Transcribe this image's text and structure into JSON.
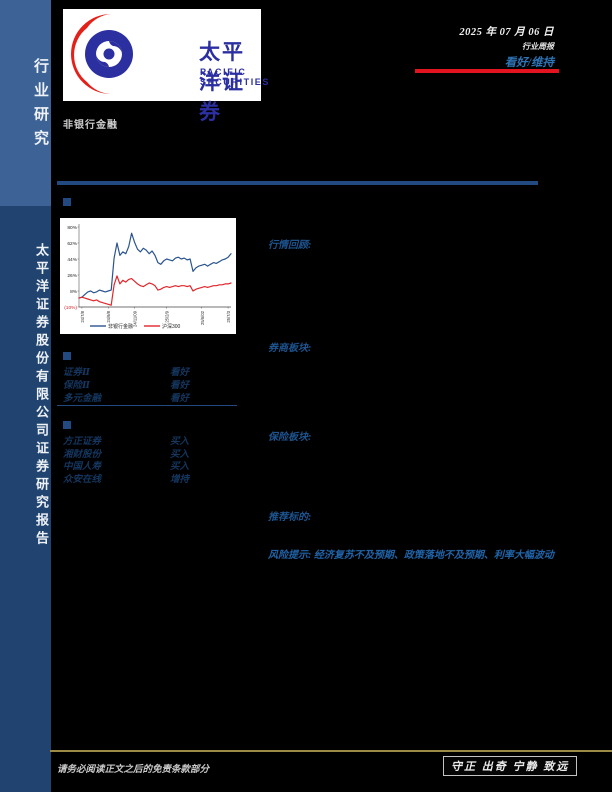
{
  "header": {
    "date": "2025 年 07 月 06 日",
    "report_type": "行业周报",
    "rating": "看好/维持",
    "industry": "非银行金融"
  },
  "sidebar": {
    "top_label": "行业研究",
    "bottom_label": "太平洋证券股份有限公司证券研究报告"
  },
  "logo": {
    "name_cn": "太平洋证券",
    "name_en": "PACIFIC SECURITIES",
    "brand_blue": "#2b2fa0",
    "brand_red": "#e32119"
  },
  "sections": {
    "review_label": "行情回顾:",
    "broker_label": "券商板块:",
    "insurance_label": "保险板块:",
    "targets_label": "推荐标的:",
    "risk_label": "风险提示:",
    "risk_text": " 经济复苏不及预期、政策落地不及预期、利率大幅波动"
  },
  "ratings": {
    "industry_rows": [
      {
        "name": "证券Ⅱ",
        "rating": "看好"
      },
      {
        "name": "保险Ⅱ",
        "rating": "看好"
      },
      {
        "name": "多元金融",
        "rating": "看好"
      }
    ],
    "company_rows": [
      {
        "name": "方正证券",
        "rating": "买入"
      },
      {
        "name": "湘财股份",
        "rating": "买入"
      },
      {
        "name": "中国人寿",
        "rating": "买入"
      },
      {
        "name": "众安在线",
        "rating": "增持"
      }
    ]
  },
  "footer": {
    "disclaimer": "请务必阅读正文之后的免责条款部分",
    "motto": "守正 出奇 宁静 致远",
    "line_color": "#9c8b45"
  },
  "chart_data": {
    "type": "line",
    "title": "",
    "xlabel": "",
    "ylabel": "",
    "ylim": [
      -10,
      80
    ],
    "grid": false,
    "legend_position": "bottom",
    "y_ticks": [
      80,
      62,
      44,
      26,
      8,
      -10
    ],
    "y_tick_labels": [
      "80%",
      "62%",
      "44%",
      "26%",
      "8%",
      "(10%)"
    ],
    "x_tick_indices": [
      1,
      10,
      19,
      30,
      42,
      51
    ],
    "x_tick_labels": [
      "24/7/8",
      "24/9/8",
      "24/11/09",
      "25/2/9",
      "25/5/02",
      "25/7/3"
    ],
    "series": [
      {
        "name": "非银行金融",
        "color": "#2a5490",
        "values": [
          0,
          1,
          4,
          7,
          8,
          6,
          7,
          9,
          8,
          7,
          8,
          9,
          45,
          62,
          48,
          52,
          50,
          58,
          73,
          63,
          55,
          52,
          56,
          54,
          50,
          53,
          48,
          40,
          38,
          42,
          44,
          43,
          42,
          45,
          46,
          44,
          45,
          43,
          44,
          30,
          34,
          36,
          37,
          38,
          36,
          38,
          40,
          39,
          41,
          43,
          44,
          46,
          50
        ]
      },
      {
        "name": "沪深300",
        "color": "#e0262b",
        "values": [
          0,
          1,
          0,
          -1,
          -2,
          -3,
          -2,
          -4,
          -5,
          -6,
          -7,
          -8,
          15,
          25,
          16,
          20,
          18,
          21,
          22,
          19,
          16,
          14,
          13,
          15,
          17,
          16,
          14,
          9,
          10,
          12,
          13,
          12,
          13,
          14,
          13,
          14,
          14,
          13,
          14,
          8,
          10,
          11,
          12,
          13,
          12,
          13,
          14,
          14,
          15,
          15,
          16,
          16,
          17
        ]
      }
    ]
  }
}
